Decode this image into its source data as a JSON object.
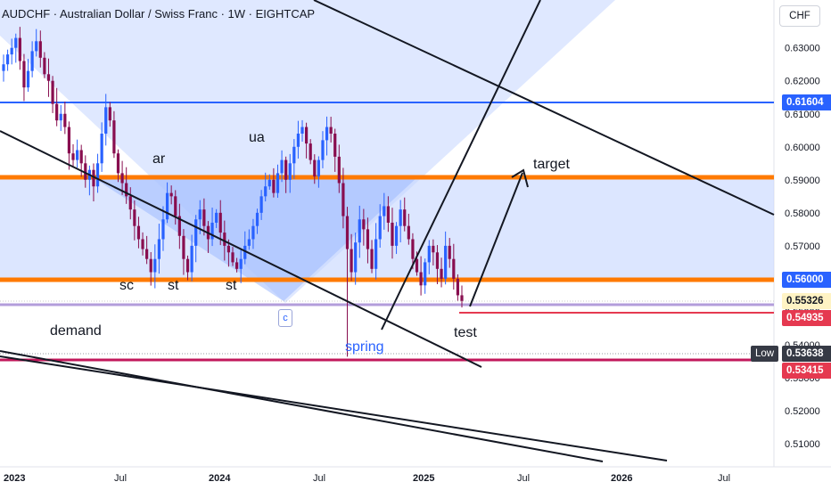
{
  "title": "AUDCHF · Australian Dollar / Swiss Franc · 1W · EIGHTCAP",
  "currency": "CHF",
  "annotations": {
    "sc": "sc",
    "ar": "ar",
    "st1": "st",
    "st2": "st",
    "ua": "ua",
    "c": "c",
    "spring": "spring",
    "test": "test",
    "target": "target",
    "demand": "demand"
  },
  "price_tags": {
    "resistance": {
      "value": "0.61604",
      "color": "#2962ff"
    },
    "support": {
      "value": "0.56000",
      "color": "#2962ff"
    },
    "last": {
      "value": "0.55326",
      "color": "#fff3c4"
    },
    "prev": {
      "value": "0.54935",
      "color": "#e53950"
    },
    "low": {
      "value": "0.53638",
      "color": "#363a45",
      "label": "Low"
    },
    "bottom": {
      "value": "0.53415",
      "color": "#e53950"
    }
  },
  "colors": {
    "up": "#2962ff",
    "down": "#880e4f",
    "orange": "#ff7a00",
    "blue_line": "#2962ff",
    "purple_line": "#b39ddb",
    "red_line": "#e53950",
    "zone_fill": "#c9d7ff",
    "zone_fill_light": "#dbe6ff"
  },
  "chart_data": {
    "type": "candlestick",
    "symbol": "AUDCHF",
    "timeframe": "1W",
    "y_ticks": [
      "0.63000",
      "0.62000",
      "0.61000",
      "0.60000",
      "0.59000",
      "0.58000",
      "0.57000",
      "0.56000",
      "0.55000",
      "0.54000",
      "0.53000",
      "0.52000",
      "0.51000"
    ],
    "x_ticks": [
      "2023",
      "Jul",
      "2024",
      "Jul",
      "2025",
      "Jul",
      "2026",
      "Jul"
    ],
    "ylim": [
      0.503,
      0.6445
    ],
    "levels": {
      "blue_resistance": 0.61604,
      "orange_upper": 0.5925,
      "orange_lower": 0.56,
      "purple_demand_top": 0.5508,
      "purple_demand_bottom": 0.5342,
      "red_test": 0.54935
    },
    "series_close_approx": [
      0.625,
      0.628,
      0.63,
      0.633,
      0.626,
      0.618,
      0.623,
      0.629,
      0.632,
      0.627,
      0.622,
      0.62,
      0.613,
      0.608,
      0.61,
      0.606,
      0.598,
      0.596,
      0.599,
      0.595,
      0.59,
      0.593,
      0.588,
      0.595,
      0.604,
      0.612,
      0.608,
      0.598,
      0.592,
      0.589,
      0.585,
      0.581,
      0.576,
      0.572,
      0.569,
      0.566,
      0.562,
      0.566,
      0.572,
      0.578,
      0.586,
      0.585,
      0.579,
      0.573,
      0.566,
      0.562,
      0.57,
      0.578,
      0.581,
      0.576,
      0.572,
      0.577,
      0.58,
      0.574,
      0.57,
      0.568,
      0.565,
      0.563,
      0.566,
      0.57,
      0.572,
      0.576,
      0.58,
      0.585,
      0.588,
      0.59,
      0.586,
      0.592,
      0.596,
      0.59,
      0.595,
      0.6,
      0.604,
      0.606,
      0.601,
      0.596,
      0.591,
      0.596,
      0.602,
      0.606,
      0.604,
      0.597,
      0.589,
      0.579,
      0.569,
      0.562,
      0.571,
      0.578,
      0.575,
      0.569,
      0.563,
      0.572,
      0.579,
      0.582,
      0.577,
      0.57,
      0.576,
      0.581,
      0.576,
      0.572,
      0.566,
      0.562,
      0.558,
      0.565,
      0.57,
      0.568,
      0.563,
      0.56,
      0.57,
      0.566,
      0.56,
      0.555,
      0.5533
    ]
  }
}
